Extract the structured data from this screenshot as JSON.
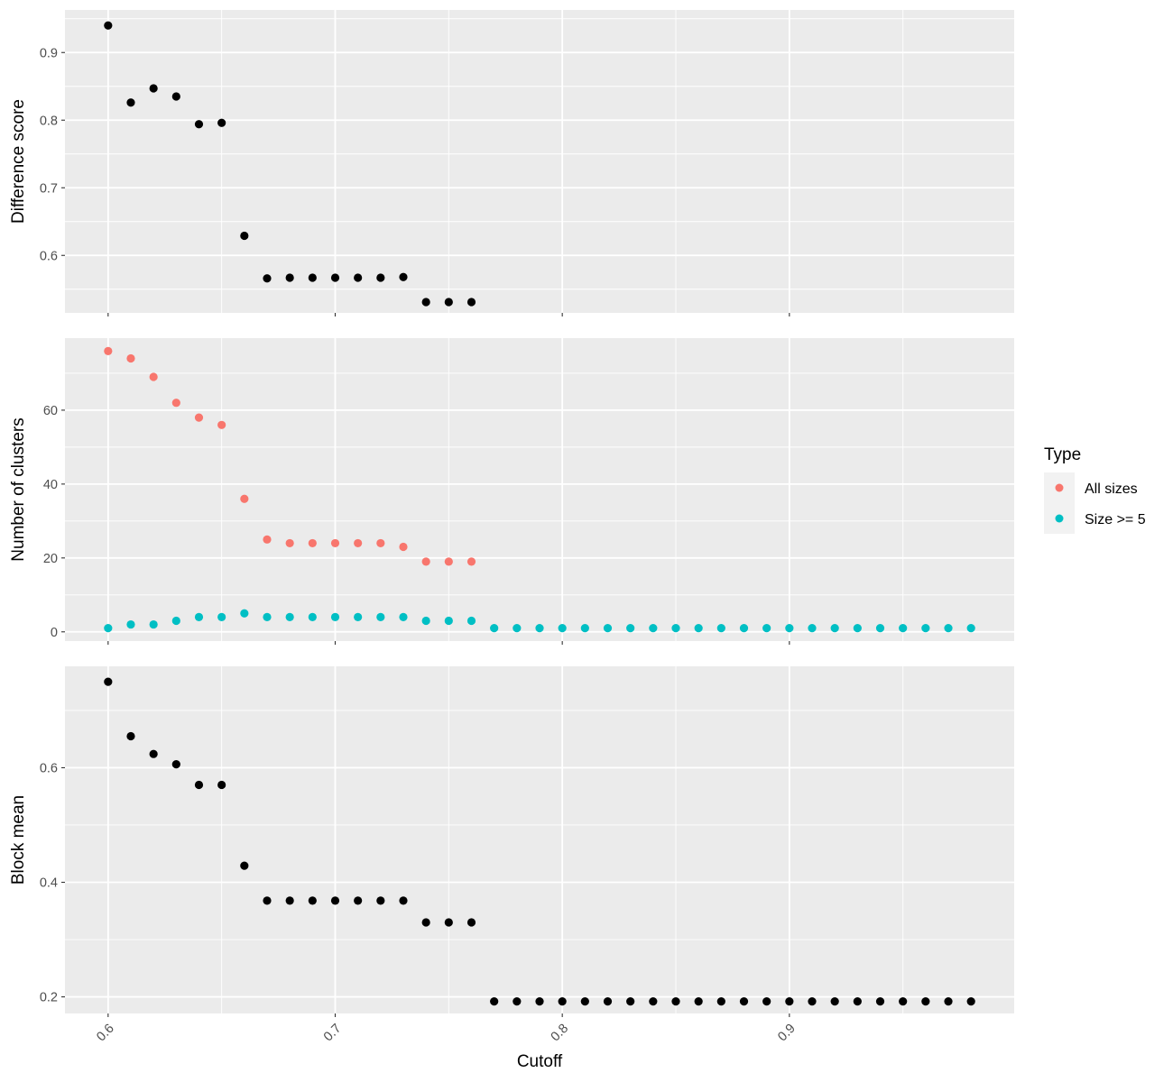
{
  "chart_data": [
    {
      "type": "scatter",
      "xlabel": "",
      "ylabel": "Difference score",
      "xlim": [
        0.581,
        0.999
      ],
      "ylim": [
        0.515,
        0.963
      ],
      "x_ticks": [
        0.6,
        0.7,
        0.8,
        0.9
      ],
      "y_ticks": [
        0.6,
        0.7,
        0.8,
        0.9
      ],
      "y_tick_labels": [
        "0.6",
        "0.7",
        "0.8",
        "0.9"
      ],
      "grid": true,
      "series": [
        {
          "color": "#000000",
          "x": [
            0.6,
            0.61,
            0.62,
            0.63,
            0.64,
            0.65,
            0.66,
            0.67,
            0.68,
            0.69,
            0.7,
            0.71,
            0.72,
            0.73,
            0.74,
            0.75,
            0.76
          ],
          "y": [
            0.94,
            0.826,
            0.847,
            0.835,
            0.794,
            0.796,
            0.629,
            0.566,
            0.567,
            0.567,
            0.567,
            0.567,
            0.567,
            0.568,
            0.531,
            0.531,
            0.531
          ]
        }
      ]
    },
    {
      "type": "scatter",
      "xlabel": "",
      "ylabel": "Number of clusters",
      "xlim": [
        0.581,
        0.999
      ],
      "ylim": [
        -2.5,
        79.5
      ],
      "x_ticks": [
        0.6,
        0.7,
        0.8,
        0.9
      ],
      "y_ticks": [
        0,
        20,
        40,
        60
      ],
      "y_tick_labels": [
        "0",
        "20",
        "40",
        "60"
      ],
      "grid": true,
      "series": [
        {
          "name": "All sizes",
          "color": "#F8766D",
          "x": [
            0.6,
            0.61,
            0.62,
            0.63,
            0.64,
            0.65,
            0.66,
            0.67,
            0.68,
            0.69,
            0.7,
            0.71,
            0.72,
            0.73,
            0.74,
            0.75,
            0.76
          ],
          "y": [
            76,
            74,
            69,
            62,
            58,
            56,
            36,
            25,
            24,
            24,
            24,
            24,
            24,
            23,
            19,
            19,
            19
          ]
        },
        {
          "name": "Size >= 5",
          "color": "#00BFC4",
          "x": [
            0.6,
            0.61,
            0.62,
            0.63,
            0.64,
            0.65,
            0.66,
            0.67,
            0.68,
            0.69,
            0.7,
            0.71,
            0.72,
            0.73,
            0.74,
            0.75,
            0.76,
            0.77,
            0.78,
            0.79,
            0.8,
            0.81,
            0.82,
            0.83,
            0.84,
            0.85,
            0.86,
            0.87,
            0.88,
            0.89,
            0.9,
            0.91,
            0.92,
            0.93,
            0.94,
            0.95,
            0.96,
            0.97,
            0.98
          ],
          "y": [
            1,
            2,
            2,
            3,
            4,
            4,
            5,
            4,
            4,
            4,
            4,
            4,
            4,
            4,
            3,
            3,
            3,
            1,
            1,
            1,
            1,
            1,
            1,
            1,
            1,
            1,
            1,
            1,
            1,
            1,
            1,
            1,
            1,
            1,
            1,
            1,
            1,
            1,
            1
          ]
        }
      ]
    },
    {
      "type": "scatter",
      "xlabel": "Cutoff",
      "ylabel": "Block mean",
      "xlim": [
        0.581,
        0.999
      ],
      "ylim": [
        0.171,
        0.777
      ],
      "x_ticks": [
        0.6,
        0.7,
        0.8,
        0.9
      ],
      "x_tick_labels": [
        "0.6",
        "0.7",
        "0.8",
        "0.9"
      ],
      "y_ticks": [
        0.2,
        0.4,
        0.6
      ],
      "y_tick_labels": [
        "0.2",
        "0.4",
        "0.6"
      ],
      "grid": true,
      "series": [
        {
          "color": "#000000",
          "x": [
            0.6,
            0.61,
            0.62,
            0.63,
            0.64,
            0.65,
            0.66,
            0.67,
            0.68,
            0.69,
            0.7,
            0.71,
            0.72,
            0.73,
            0.74,
            0.75,
            0.76,
            0.77,
            0.78,
            0.79,
            0.8,
            0.81,
            0.82,
            0.83,
            0.84,
            0.85,
            0.86,
            0.87,
            0.88,
            0.89,
            0.9,
            0.91,
            0.92,
            0.93,
            0.94,
            0.95,
            0.96,
            0.97,
            0.98
          ],
          "y": [
            0.75,
            0.655,
            0.624,
            0.606,
            0.57,
            0.57,
            0.429,
            0.368,
            0.368,
            0.368,
            0.368,
            0.368,
            0.368,
            0.368,
            0.33,
            0.33,
            0.33,
            0.192,
            0.192,
            0.192,
            0.192,
            0.192,
            0.192,
            0.192,
            0.192,
            0.192,
            0.192,
            0.192,
            0.192,
            0.192,
            0.192,
            0.192,
            0.192,
            0.192,
            0.192,
            0.192,
            0.192,
            0.192,
            0.192
          ]
        }
      ]
    }
  ],
  "legend": {
    "title": "Type",
    "items": [
      {
        "label": "All sizes",
        "color": "#F8766D"
      },
      {
        "label": "Size >= 5",
        "color": "#00BFC4"
      }
    ],
    "placement": "right"
  }
}
